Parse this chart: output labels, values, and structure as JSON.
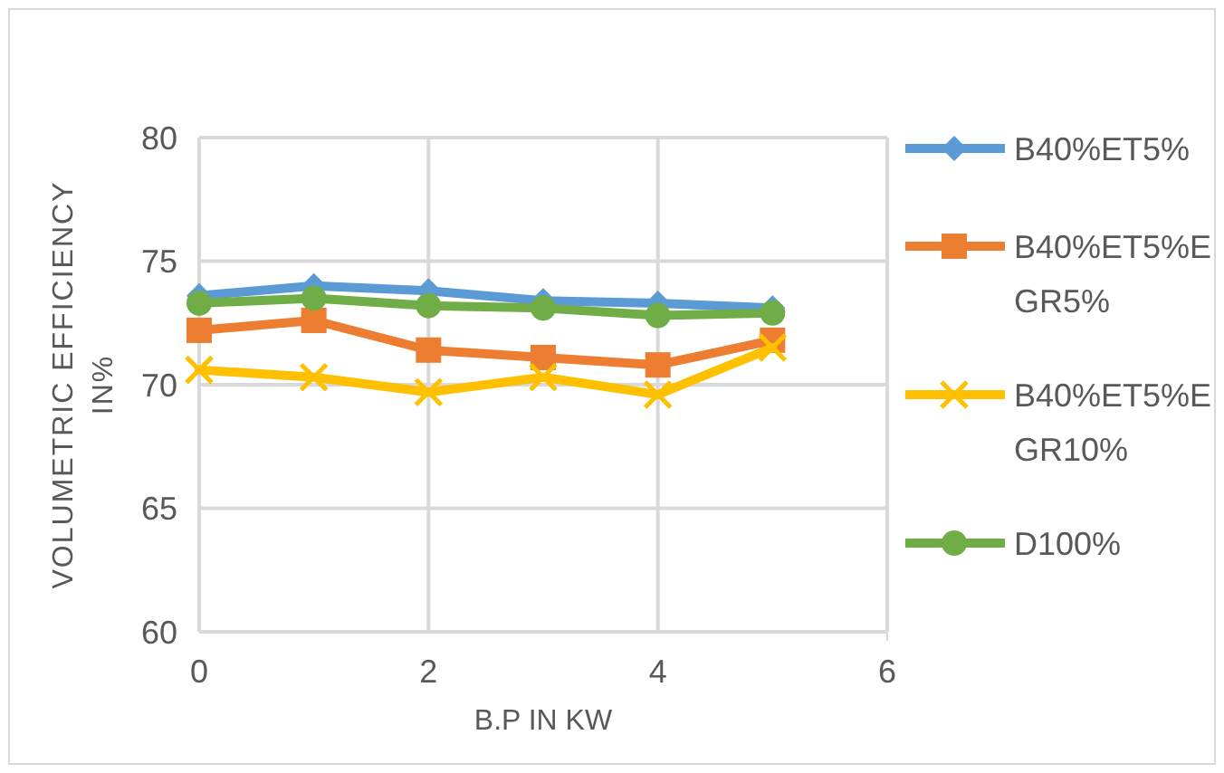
{
  "chart_data": {
    "type": "line",
    "xlabel": "B.P IN KW",
    "ylabel": "VOLUMETRIC EFFICIENCY IN%",
    "x": [
      0,
      1,
      2,
      3,
      4,
      5
    ],
    "xlim": [
      0,
      6
    ],
    "xticks": [
      0,
      2,
      4,
      6
    ],
    "ylim": [
      60,
      80
    ],
    "yticks": [
      60,
      65,
      70,
      75,
      80
    ],
    "grid": true,
    "legend": "right",
    "series": [
      {
        "name": "B40%ET5%",
        "color": "#5b9bd5",
        "marker": "diamond",
        "values": [
          73.6,
          74.0,
          73.8,
          73.4,
          73.3,
          73.1
        ]
      },
      {
        "name": "B40%ET5%EGR5%",
        "color": "#ed7d31",
        "marker": "square",
        "values": [
          72.2,
          72.6,
          71.4,
          71.1,
          70.8,
          71.8
        ]
      },
      {
        "name": "B40%ET5%EGR10%",
        "color": "#ffc000",
        "marker": "cross",
        "values": [
          70.6,
          70.3,
          69.7,
          70.3,
          69.6,
          71.5
        ]
      },
      {
        "name": "D100%",
        "color": "#70ad47",
        "marker": "circle",
        "values": [
          73.3,
          73.5,
          73.2,
          73.1,
          72.8,
          72.9
        ]
      }
    ]
  }
}
